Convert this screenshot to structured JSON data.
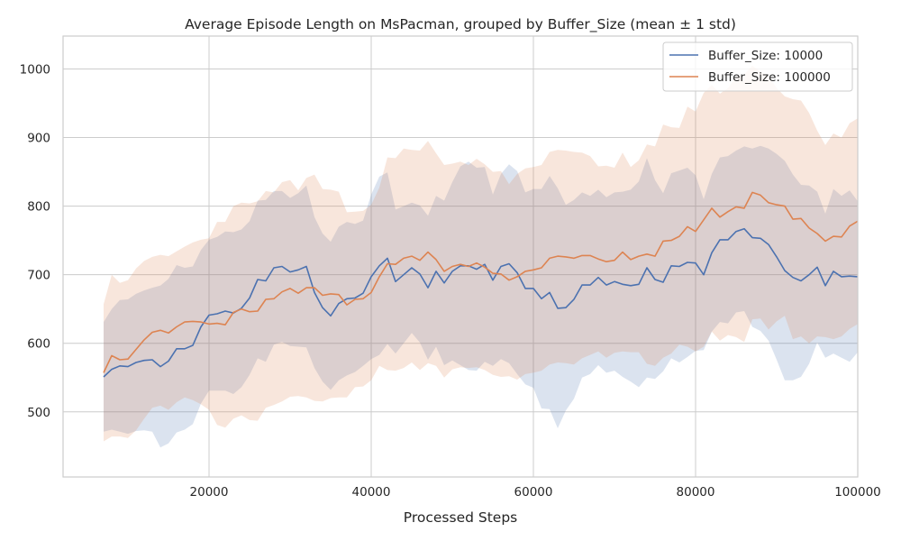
{
  "chart_data": {
    "type": "line",
    "title": "Average Episode Length on MsPacman, grouped by Buffer_Size (mean ± 1 std)",
    "xlabel": "Processed Steps",
    "ylabel": "",
    "xlim": [
      2000,
      100000
    ],
    "ylim": [
      405,
      1048
    ],
    "xticks": [
      20000,
      40000,
      60000,
      80000,
      100000
    ],
    "yticks": [
      500,
      600,
      700,
      800,
      900,
      1000
    ],
    "grid": true,
    "legend_position": "top-right",
    "x": [
      7000,
      8000,
      9000,
      10000,
      11000,
      12000,
      13000,
      14000,
      15000,
      16000,
      17000,
      18000,
      19000,
      20000,
      21000,
      22000,
      23000,
      24000,
      25000,
      26000,
      27000,
      28000,
      29000,
      30000,
      31000,
      32000,
      33000,
      34000,
      35000,
      36000,
      37000,
      38000,
      39000,
      40000,
      41000,
      42000,
      43000,
      44000,
      45000,
      46000,
      47000,
      48000,
      49000,
      50000,
      51000,
      52000,
      53000,
      54000,
      55000,
      56000,
      57000,
      58000,
      59000,
      60000,
      61000,
      62000,
      63000,
      64000,
      65000,
      66000,
      67000,
      68000,
      69000,
      70000,
      71000,
      72000,
      73000,
      74000,
      75000,
      76000,
      77000,
      78000,
      79000,
      80000,
      81000,
      82000,
      83000,
      84000,
      85000,
      86000,
      87000,
      88000,
      89000,
      90000,
      91000,
      92000,
      93000,
      94000,
      95000,
      96000,
      97000,
      98000,
      99000,
      100000
    ],
    "series": [
      {
        "name": "Buffer_Size: 10000",
        "color": "#4c72b0",
        "mean": [
          551,
          562,
          567,
          566,
          572,
          575,
          576,
          566,
          574,
          592,
          592,
          597,
          624,
          641,
          643,
          647,
          644,
          651,
          666,
          693,
          691,
          710,
          712,
          704,
          707,
          712,
          674,
          652,
          640,
          658,
          665,
          666,
          673,
          697,
          713,
          724,
          690,
          700,
          710,
          701,
          681,
          705,
          688,
          705,
          713,
          713,
          708,
          715,
          692,
          712,
          716,
          703,
          680,
          680,
          665,
          674,
          651,
          652,
          664,
          685,
          685,
          696,
          685,
          690,
          686,
          684,
          686,
          710,
          693,
          689,
          713,
          712,
          718,
          717,
          700,
          732,
          751,
          751,
          763,
          767,
          754,
          753,
          744,
          726,
          706,
          696,
          691,
          700,
          711,
          684,
          705,
          697,
          698,
          697
        ],
        "std": [
          80,
          88,
          96,
          98,
          100,
          102,
          105,
          118,
          120,
          122,
          118,
          115,
          112,
          110,
          112,
          116,
          118,
          115,
          112,
          115,
          118,
          112,
          110,
          108,
          112,
          118,
          110,
          108,
          108,
          112,
          112,
          108,
          106,
          120,
          130,
          125,
          105,
          100,
          95,
          100,
          105,
          110,
          120,
          130,
          145,
          152,
          148,
          142,
          125,
          135,
          145,
          148,
          140,
          145,
          160,
          170,
          175,
          150,
          145,
          135,
          130,
          128,
          128,
          130,
          135,
          140,
          150,
          160,
          145,
          130,
          135,
          140,
          138,
          128,
          110,
          115,
          120,
          122,
          118,
          120,
          130,
          135,
          140,
          150,
          160,
          150,
          140,
          130,
          110,
          105,
          120,
          118,
          125,
          110
        ],
        "std_color": "#4c72b0"
      },
      {
        "name": "Buffer_Size: 100000",
        "color": "#dd8452",
        "mean": [
          557,
          582,
          576,
          577,
          591,
          605,
          616,
          619,
          615,
          624,
          631,
          632,
          631,
          628,
          629,
          627,
          645,
          650,
          646,
          647,
          664,
          665,
          675,
          680,
          673,
          681,
          681,
          670,
          672,
          671,
          656,
          664,
          665,
          674,
          697,
          716,
          715,
          724,
          727,
          721,
          733,
          722,
          705,
          712,
          715,
          712,
          717,
          711,
          702,
          701,
          692,
          697,
          705,
          707,
          710,
          724,
          727,
          726,
          724,
          728,
          728,
          723,
          719,
          721,
          733,
          722,
          727,
          730,
          727,
          749,
          750,
          756,
          770,
          763,
          780,
          797,
          784,
          792,
          799,
          797,
          820,
          816,
          805,
          802,
          800,
          781,
          782,
          768,
          760,
          749,
          756,
          755,
          771,
          778
        ],
        "std": [
          100,
          118,
          112,
          115,
          118,
          115,
          110,
          110,
          112,
          110,
          110,
          115,
          120,
          125,
          148,
          150,
          155,
          155,
          158,
          160,
          158,
          155,
          160,
          158,
          150,
          160,
          165,
          155,
          152,
          150,
          135,
          128,
          128,
          128,
          130,
          155,
          155,
          160,
          155,
          160,
          162,
          155,
          155,
          150,
          150,
          148,
          152,
          150,
          148,
          150,
          140,
          150,
          150,
          150,
          150,
          155,
          155,
          155,
          155,
          150,
          145,
          135,
          140,
          135,
          145,
          135,
          140,
          160,
          160,
          170,
          165,
          158,
          175,
          175,
          185,
          180,
          180,
          180,
          190,
          195,
          185,
          180,
          185,
          170,
          160,
          175,
          172,
          168,
          150,
          140,
          150,
          145,
          150,
          150
        ],
        "std_color": "#dd8452"
      }
    ]
  }
}
